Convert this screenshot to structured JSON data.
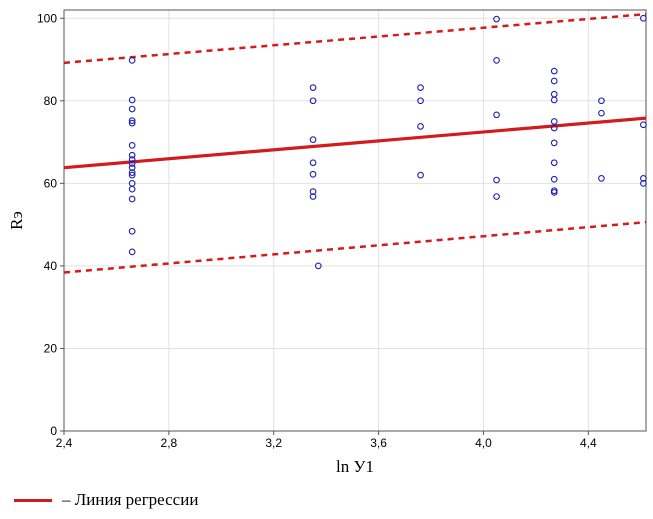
{
  "chart_data": {
    "type": "scatter",
    "title": "",
    "xlabel": "ln У1",
    "ylabel": "Rэ",
    "xlim": [
      2.4,
      4.62
    ],
    "ylim": [
      0,
      102
    ],
    "x_ticks": [
      "2,4",
      "2,8",
      "3,2",
      "3,6",
      "4,0",
      "4,4"
    ],
    "x_tick_values": [
      2.4,
      2.8,
      3.2,
      3.6,
      4.0,
      4.4
    ],
    "y_ticks": [
      "0",
      "20",
      "40",
      "60",
      "80",
      "100"
    ],
    "y_tick_values": [
      0,
      20,
      40,
      60,
      80,
      100
    ],
    "grid": true,
    "points": [
      [
        2.66,
        89.8
      ],
      [
        2.66,
        80.2
      ],
      [
        2.66,
        78.0
      ],
      [
        2.66,
        75.2
      ],
      [
        2.66,
        74.6
      ],
      [
        2.66,
        69.2
      ],
      [
        2.66,
        66.8
      ],
      [
        2.66,
        65.8
      ],
      [
        2.66,
        64.8
      ],
      [
        2.66,
        63.8
      ],
      [
        2.66,
        62.6
      ],
      [
        2.66,
        62.0
      ],
      [
        2.66,
        60.0
      ],
      [
        2.66,
        58.6
      ],
      [
        2.66,
        56.2
      ],
      [
        2.66,
        48.4
      ],
      [
        2.66,
        43.4
      ],
      [
        3.35,
        83.2
      ],
      [
        3.35,
        80.0
      ],
      [
        3.35,
        70.6
      ],
      [
        3.35,
        65.0
      ],
      [
        3.35,
        62.2
      ],
      [
        3.35,
        58.0
      ],
      [
        3.35,
        56.8
      ],
      [
        3.37,
        40.0
      ],
      [
        3.76,
        83.2
      ],
      [
        3.76,
        80.0
      ],
      [
        3.76,
        73.8
      ],
      [
        3.76,
        62.0
      ],
      [
        4.05,
        99.8
      ],
      [
        4.05,
        89.8
      ],
      [
        4.05,
        76.6
      ],
      [
        4.05,
        60.8
      ],
      [
        4.05,
        56.8
      ],
      [
        4.27,
        87.2
      ],
      [
        4.27,
        84.8
      ],
      [
        4.27,
        81.6
      ],
      [
        4.27,
        80.2
      ],
      [
        4.27,
        75.0
      ],
      [
        4.27,
        73.4
      ],
      [
        4.27,
        69.8
      ],
      [
        4.27,
        65.0
      ],
      [
        4.27,
        61.0
      ],
      [
        4.27,
        58.2
      ],
      [
        4.27,
        57.8
      ],
      [
        4.45,
        80.0
      ],
      [
        4.45,
        77.0
      ],
      [
        4.45,
        61.2
      ],
      [
        4.61,
        100.0
      ],
      [
        4.61,
        74.2
      ],
      [
        4.61,
        61.2
      ],
      [
        4.61,
        60.0
      ]
    ],
    "point_color": "#1f1fb4",
    "regression_line": {
      "x": [
        2.4,
        4.62
      ],
      "y": [
        63.8,
        75.8
      ]
    },
    "confidence_band_upper": {
      "x": [
        2.4,
        4.62
      ],
      "y": [
        89.2,
        101.0
      ]
    },
    "confidence_band_lower": {
      "x": [
        2.4,
        4.62
      ],
      "y": [
        38.4,
        50.6
      ]
    },
    "line_color": "#d41a1a",
    "legend": {
      "placement": "bottom-left",
      "entries": [
        {
          "label": "– Линия регрессии"
        }
      ]
    }
  }
}
